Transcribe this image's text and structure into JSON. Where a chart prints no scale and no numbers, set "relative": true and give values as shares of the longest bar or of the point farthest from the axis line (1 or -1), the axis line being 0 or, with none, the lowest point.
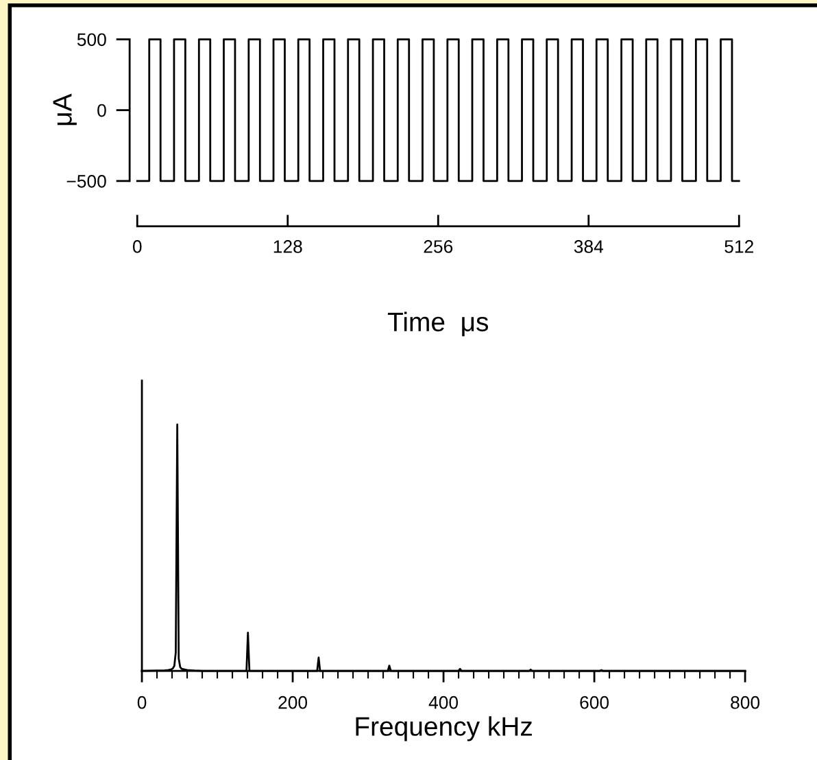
{
  "chart_data": [
    {
      "type": "step",
      "ylabel": "μA",
      "xlabel": "Time  μs",
      "x": [
        0,
        10.2,
        19.8,
        31.3,
        40.9,
        52.5,
        62.1,
        73.6,
        83.2,
        94.8,
        104.4,
        115.9,
        125.5,
        137.0,
        146.6,
        158.2,
        167.8,
        179.3,
        188.9,
        200.5,
        210.1,
        221.6,
        231.2,
        242.7,
        252.3,
        263.9,
        273.5,
        285.0,
        294.6,
        306.2,
        315.8,
        327.3,
        336.9,
        348.4,
        358.0,
        369.6,
        379.2,
        390.7,
        400.3,
        411.9,
        421.5,
        433.0,
        442.6,
        454.1,
        463.7,
        475.3,
        484.9,
        496.4,
        506.0,
        512
      ],
      "values": [
        -500,
        500,
        -500,
        500,
        -500,
        500,
        -500,
        500,
        -500,
        500,
        -500,
        500,
        -500,
        500,
        -500,
        500,
        -500,
        500,
        -500,
        500,
        -500,
        500,
        -500,
        500,
        -500,
        500,
        -500,
        500,
        -500,
        500,
        -500,
        500,
        -500,
        500,
        -500,
        500,
        -500,
        500,
        -500,
        500,
        -500,
        500,
        -500,
        500,
        -500,
        500,
        -500,
        500,
        -500,
        -500
      ],
      "color": "#000000",
      "line_style": "solid",
      "marker": "none",
      "grid": false,
      "legend": false,
      "xlim": [
        0,
        512
      ],
      "xticks": [
        0,
        128,
        256,
        384,
        512
      ],
      "ylim": [
        -820,
        520
      ],
      "yticks": [
        {
          "value": -500,
          "label": "−500"
        },
        0,
        500
      ]
    },
    {
      "type": "line",
      "relative": true,
      "xlabel": "Frequency kHz",
      "x": [
        0,
        20,
        30,
        35,
        39.1,
        41.0,
        43.0,
        44.9,
        46.9,
        48.8,
        50.8,
        52.7,
        60,
        70,
        80,
        138.7,
        140.6,
        142.6,
        232.4,
        234.4,
        236.3,
        326.2,
        328.1,
        330.1,
        419.9,
        421.9,
        423.8,
        513.7,
        515.6,
        517.6,
        607.4,
        609.4,
        611.3,
        800
      ],
      "values": [
        0,
        0.001,
        0.002,
        0.003,
        0.006,
        0.01,
        0.02,
        0.075,
        1.0,
        0.05,
        0.015,
        0.008,
        0.003,
        0.001,
        0,
        0,
        0.155,
        0,
        0,
        0.054,
        0,
        0,
        0.021,
        0,
        0,
        0.008,
        0,
        0,
        0.005,
        0,
        0,
        0.003,
        0,
        0
      ],
      "color": "#000000",
      "line_style": "solid",
      "marker": "none",
      "grid": false,
      "legend": false,
      "tick_labels": "x",
      "xlim": [
        0,
        800
      ],
      "xticks": [
        0,
        {
          "value": 20,
          "label": null
        },
        {
          "value": 40,
          "label": null
        },
        {
          "value": 60,
          "label": null
        },
        {
          "value": 80,
          "label": null
        },
        {
          "value": 100,
          "label": null
        },
        {
          "value": 120,
          "label": null
        },
        {
          "value": 140,
          "label": null
        },
        {
          "value": 160,
          "label": null
        },
        {
          "value": 180,
          "label": null
        },
        200,
        {
          "value": 220,
          "label": null
        },
        {
          "value": 240,
          "label": null
        },
        {
          "value": 260,
          "label": null
        },
        {
          "value": 280,
          "label": null
        },
        {
          "value": 300,
          "label": null
        },
        {
          "value": 320,
          "label": null
        },
        {
          "value": 340,
          "label": null
        },
        {
          "value": 360,
          "label": null
        },
        {
          "value": 380,
          "label": null
        },
        400,
        {
          "value": 420,
          "label": null
        },
        {
          "value": 440,
          "label": null
        },
        {
          "value": 460,
          "label": null
        },
        {
          "value": 480,
          "label": null
        },
        {
          "value": 500,
          "label": null
        },
        {
          "value": 520,
          "label": null
        },
        {
          "value": 540,
          "label": null
        },
        {
          "value": 560,
          "label": null
        },
        {
          "value": 580,
          "label": null
        },
        600,
        {
          "value": 620,
          "label": null
        },
        {
          "value": 640,
          "label": null
        },
        {
          "value": 660,
          "label": null
        },
        {
          "value": 680,
          "label": null
        },
        {
          "value": 700,
          "label": null
        },
        {
          "value": 720,
          "label": null
        },
        {
          "value": 740,
          "label": null
        },
        {
          "value": 760,
          "label": null
        },
        {
          "value": 780,
          "label": null
        },
        800
      ]
    }
  ]
}
